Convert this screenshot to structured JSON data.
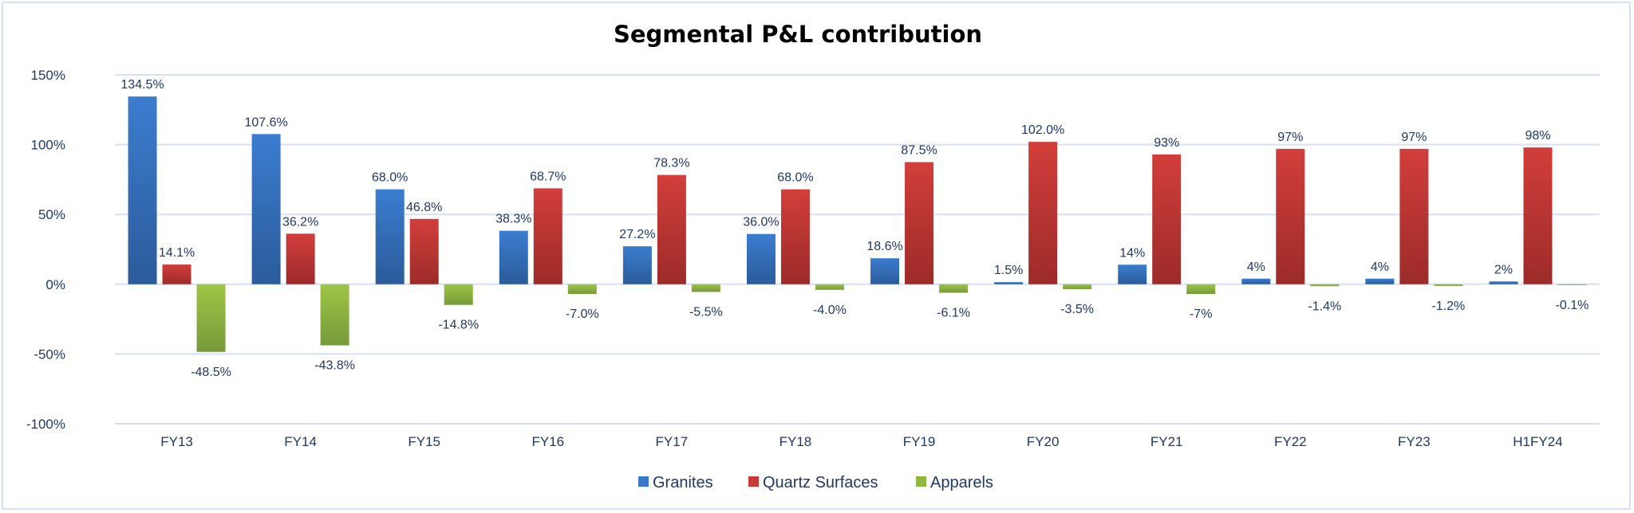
{
  "chart_data": {
    "type": "bar",
    "title": "Segmental P&L contribution",
    "categories": [
      "FY13",
      "FY14",
      "FY15",
      "FY16",
      "FY17",
      "FY18",
      "FY19",
      "FY20",
      "FY21",
      "FY22",
      "FY23",
      "H1FY24"
    ],
    "series": [
      {
        "name": "Granites",
        "color": "#3a78c9",
        "values": [
          134.5,
          107.6,
          68.0,
          38.3,
          27.2,
          36.0,
          18.6,
          1.5,
          14,
          4,
          4,
          2
        ],
        "labels": [
          "134.5%",
          "107.6%",
          "68.0%",
          "38.3%",
          "27.2%",
          "36.0%",
          "18.6%",
          "1.5%",
          "14%",
          "4%",
          "4%",
          "2%"
        ]
      },
      {
        "name": "Quartz Surfaces",
        "color": "#c83a37",
        "values": [
          14.1,
          36.2,
          46.8,
          68.7,
          78.3,
          68.0,
          87.5,
          102.0,
          93,
          97,
          97,
          98
        ],
        "labels": [
          "14.1%",
          "36.2%",
          "46.8%",
          "68.7%",
          "78.3%",
          "68.0%",
          "87.5%",
          "102.0%",
          "93%",
          "97%",
          "97%",
          "98%"
        ]
      },
      {
        "name": "Apparels",
        "color": "#8fb83e",
        "values": [
          -48.5,
          -43.8,
          -14.8,
          -7.0,
          -5.5,
          -4.0,
          -6.1,
          -3.5,
          -7,
          -1.4,
          -1.2,
          -0.1
        ],
        "labels": [
          "-48.5%",
          "-43.8%",
          "-14.8%",
          "-7.0%",
          "-5.5%",
          "-4.0%",
          "-6.1%",
          "-3.5%",
          "-7%",
          "-1.4%",
          "-1.2%",
          "-0.1%"
        ]
      }
    ],
    "ylim": [
      -100,
      150
    ],
    "yticks": [
      150,
      100,
      50,
      0,
      -50,
      -100
    ],
    "ytick_labels": [
      "150%",
      "100%",
      "50%",
      "0%",
      "-50%",
      "-100%"
    ],
    "grid": true,
    "legend_position": "bottom",
    "xlabel": "",
    "ylabel": ""
  }
}
